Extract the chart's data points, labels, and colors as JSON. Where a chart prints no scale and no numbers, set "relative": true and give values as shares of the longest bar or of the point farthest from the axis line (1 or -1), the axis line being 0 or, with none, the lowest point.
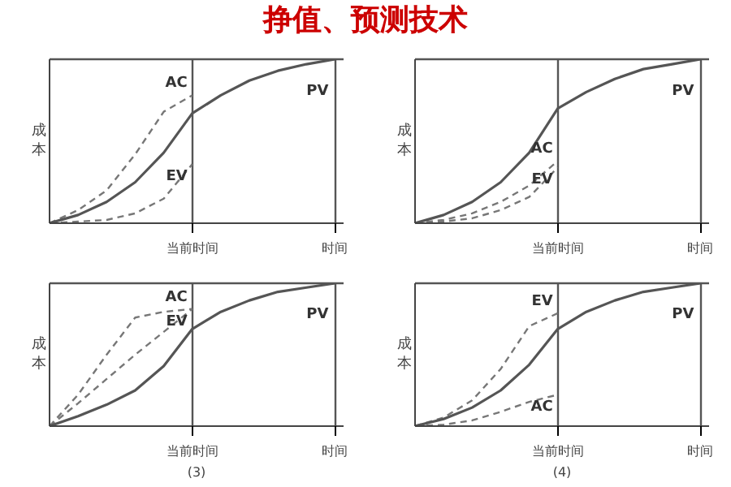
{
  "chart_data": [
    {
      "type": "line",
      "title": "挣值、预测技术",
      "ylabel": "成本",
      "relative": true,
      "categories": [
        null,
        null,
        null,
        null,
        null,
        "当前时间",
        null,
        null,
        null,
        null,
        "时间"
      ],
      "grid": "x",
      "legend": false,
      "series": [
        {
          "name": "AC",
          "color": "#777777",
          "line_style": "dashed",
          "values": [
            0,
            0.08,
            0.2,
            0.42,
            0.68,
            0.78,
            null,
            null,
            null,
            null,
            null
          ]
        },
        {
          "name": "EV",
          "color": "#777777",
          "line_style": "dashed",
          "values": [
            0,
            0.01,
            0.02,
            0.06,
            0.15,
            0.36,
            null,
            null,
            null,
            null,
            null
          ]
        },
        {
          "name": "PV",
          "color": "#555555",
          "line_style": "solid",
          "values": [
            0,
            0.05,
            0.13,
            0.25,
            0.43,
            0.67,
            0.78,
            0.87,
            0.93,
            0.97,
            1
          ]
        }
      ]
    },
    {
      "type": "line",
      "ylabel": "成本",
      "relative": true,
      "categories": [
        null,
        null,
        null,
        null,
        null,
        "当前时间",
        null,
        null,
        null,
        null,
        "时间"
      ],
      "grid": "x",
      "legend": false,
      "series": [
        {
          "name": "AC",
          "color": "#777777",
          "line_style": "dashed",
          "values": [
            0,
            0.02,
            0.06,
            0.13,
            0.23,
            0.38,
            null,
            null,
            null,
            null,
            null
          ]
        },
        {
          "name": "EV",
          "color": "#777777",
          "line_style": "dashed",
          "values": [
            0,
            0.01,
            0.03,
            0.08,
            0.16,
            0.34,
            null,
            null,
            null,
            null,
            null
          ]
        },
        {
          "name": "PV",
          "color": "#555555",
          "line_style": "solid",
          "values": [
            0,
            0.05,
            0.13,
            0.25,
            0.43,
            0.7,
            0.8,
            0.88,
            0.94,
            0.97,
            1
          ]
        }
      ]
    },
    {
      "type": "line",
      "ylabel": "成本",
      "relative": true,
      "categories": [
        null,
        null,
        null,
        null,
        null,
        "当前时间",
        null,
        null,
        null,
        null,
        "时间"
      ],
      "grid": "x",
      "legend": false,
      "annotations": [
        "(3)"
      ],
      "series": [
        {
          "name": "AC",
          "color": "#777777",
          "line_style": "dashed",
          "values": [
            0,
            0.22,
            0.5,
            0.76,
            0.8,
            0.82,
            null,
            null,
            null,
            null,
            null
          ]
        },
        {
          "name": "EV",
          "color": "#777777",
          "line_style": "dashed",
          "values": [
            0,
            0.16,
            0.33,
            0.5,
            0.66,
            0.82,
            null,
            null,
            null,
            null,
            null
          ]
        },
        {
          "name": "PV",
          "color": "#555555",
          "line_style": "solid",
          "values": [
            0,
            0.07,
            0.15,
            0.25,
            0.42,
            0.68,
            0.8,
            0.88,
            0.94,
            0.97,
            1
          ]
        }
      ]
    },
    {
      "type": "line",
      "ylabel": "成本",
      "relative": true,
      "categories": [
        null,
        null,
        null,
        null,
        null,
        "当前时间",
        null,
        null,
        null,
        null,
        "时间"
      ],
      "grid": "x",
      "legend": false,
      "annotations": [
        "(4)"
      ],
      "series": [
        {
          "name": "EV",
          "color": "#777777",
          "line_style": "dashed",
          "values": [
            0,
            0.06,
            0.18,
            0.4,
            0.7,
            0.79,
            null,
            null,
            null,
            null,
            null
          ]
        },
        {
          "name": "AC",
          "color": "#777777",
          "line_style": "dashed",
          "values": [
            0,
            0.01,
            0.04,
            0.1,
            0.17,
            0.22,
            null,
            null,
            null,
            null,
            null
          ]
        },
        {
          "name": "PV",
          "color": "#555555",
          "line_style": "solid",
          "values": [
            0,
            0.05,
            0.13,
            0.25,
            0.43,
            0.68,
            0.8,
            0.88,
            0.94,
            0.97,
            1
          ]
        }
      ]
    }
  ]
}
